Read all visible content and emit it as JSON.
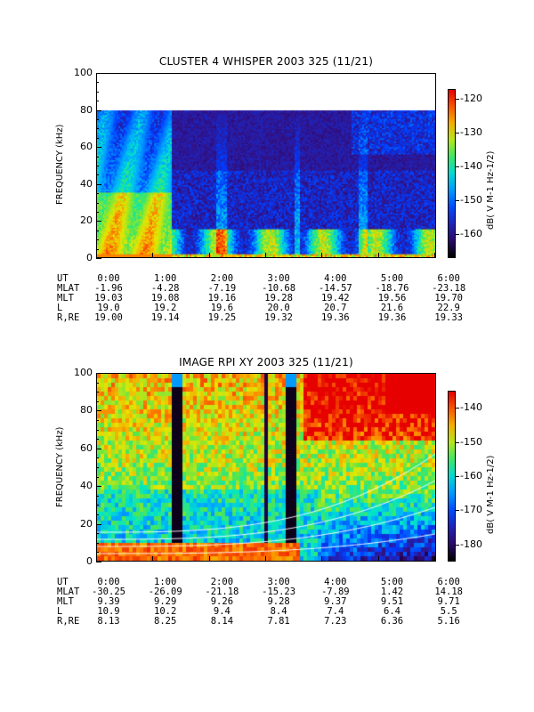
{
  "chart_data": [
    {
      "type": "heatmap",
      "title": "CLUSTER 4 WHISPER 2003 325 (11/21)",
      "ylabel": "FREQUENCY (kHz)",
      "ylim": [
        0,
        100
      ],
      "yticks": [
        "0",
        "20",
        "40",
        "60",
        "80",
        "100"
      ],
      "data_upper_freq_khz": 80,
      "colorbar": {
        "label": "dB( V M⁻¹ Hz⁻¹ᐟ²)",
        "label_text": "dB( V M-1 Hz-1/2)",
        "range": [
          -167,
          -117
        ],
        "ticks": [
          "-120",
          "-130",
          "-140",
          "-150",
          "-160"
        ]
      },
      "ephemeris": {
        "rows": [
          {
            "label": "UT",
            "values": [
              "0:00",
              "1:00",
              "2:00",
              "3:00",
              "4:00",
              "5:00",
              "6:00"
            ]
          },
          {
            "label": "MLAT",
            "values": [
              "-1.96",
              "-4.28",
              "-7.19",
              "-10.68",
              "-14.57",
              "-18.76",
              "-23.18"
            ]
          },
          {
            "label": "MLT",
            "values": [
              "19.03",
              "19.08",
              "19.16",
              "19.28",
              "19.42",
              "19.56",
              "19.70"
            ]
          },
          {
            "label": "L",
            "values": [
              "19.0",
              "19.2",
              "19.6",
              "20.0",
              "20.7",
              "21.6",
              "22.9"
            ]
          },
          {
            "label": "R,RE",
            "values": [
              "19.00",
              "19.14",
              "19.25",
              "19.32",
              "19.36",
              "19.36",
              "19.33"
            ]
          }
        ]
      }
    },
    {
      "type": "heatmap",
      "title": "IMAGE RPI XY 2003 325 (11/21)",
      "ylabel": "FREQUENCY (kHz)",
      "ylim": [
        0,
        100
      ],
      "yticks": [
        "0",
        "20",
        "40",
        "60",
        "80",
        "100"
      ],
      "colorbar": {
        "label_text": "dB( V M-1 Hz-1/2)",
        "range": [
          -185,
          -135
        ],
        "ticks": [
          "-140",
          "-150",
          "-160",
          "-170",
          "-180"
        ]
      },
      "ephemeris": {
        "rows": [
          {
            "label": "UT",
            "values": [
              "0:00",
              "1:00",
              "2:00",
              "3:00",
              "4:00",
              "5:00",
              "6:00"
            ]
          },
          {
            "label": "MLAT",
            "values": [
              "-30.25",
              "-26.09",
              "-21.18",
              "-15.23",
              "-7.89",
              "1.42",
              "14.18"
            ]
          },
          {
            "label": "MLT",
            "values": [
              "9.39",
              "9.29",
              "9.26",
              "9.28",
              "9.37",
              "9.51",
              "9.71"
            ]
          },
          {
            "label": "L",
            "values": [
              "10.9",
              "10.2",
              "9.4",
              "8.4",
              "7.4",
              "6.4",
              "5.5"
            ]
          },
          {
            "label": "R,RE",
            "values": [
              "8.13",
              "8.25",
              "8.14",
              "7.81",
              "7.23",
              "6.36",
              "5.16"
            ]
          }
        ]
      }
    }
  ]
}
